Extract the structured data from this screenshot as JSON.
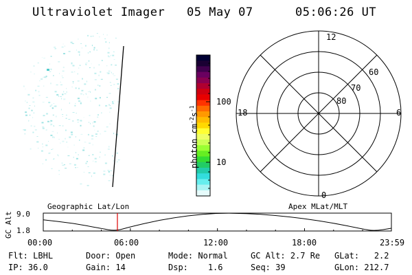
{
  "header": {
    "instrument": "Ultraviolet Imager",
    "date": "05 May 07",
    "time": "05:06:26 UT"
  },
  "colorbar": {
    "axis_label_main": "photon cm",
    "axis_label_sup1": "-2",
    "axis_label_mid": "s",
    "axis_label_sup2": "-1",
    "tick_labels": [
      "100",
      "10"
    ],
    "colors": [
      "#000033",
      "#1a0033",
      "#40004d",
      "#6a0060",
      "#8a0050",
      "#b00030",
      "#d00010",
      "#e80000",
      "#ff3300",
      "#ff6a00",
      "#ff9900",
      "#ffbb00",
      "#ffd900",
      "#ffff33",
      "#eeff66",
      "#ccff55",
      "#99ff33",
      "#66ee22",
      "#33dd33",
      "#22cc66",
      "#22ccaa",
      "#33dddd",
      "#66eeee",
      "#aaf4f4",
      "#e6fbfb"
    ]
  },
  "polar": {
    "mlt_labels": {
      "top": "12",
      "left": "18",
      "right": "6",
      "bottom": "0"
    },
    "lat_labels": [
      "60",
      "70",
      "80"
    ]
  },
  "timeline": {
    "left_title": "Geographic Lat/Lon",
    "right_title": "Apex MLat/MLT",
    "axis_label": "GC Alt",
    "y_top": "9.0",
    "y_bottom": "1.8",
    "time_ticks": [
      "00:00",
      "06:00",
      "12:00",
      "18:00",
      "23:59"
    ]
  },
  "chart_data": {
    "type": "line",
    "title": "",
    "xlabel": "",
    "ylabel": "GC Alt",
    "xlim": [
      "00:00",
      "23:59"
    ],
    "ylim": [
      1.8,
      9.0
    ],
    "current_time": "05:06:26",
    "x": [
      "00:00",
      "02:00",
      "04:00",
      "05:00",
      "06:00",
      "08:00",
      "10:00",
      "12:00",
      "14:00",
      "16:00",
      "18:00",
      "20:00",
      "22:00",
      "22:50",
      "23:59"
    ],
    "values": [
      6.3,
      5.0,
      2.8,
      1.8,
      3.5,
      6.2,
      8.0,
      9.0,
      8.9,
      8.1,
      6.8,
      5.0,
      2.6,
      1.8,
      2.9
    ]
  },
  "footer": {
    "rows": [
      [
        {
          "label": "Flt:",
          "value": "LBHL"
        },
        {
          "label": "Door:",
          "value": "Open"
        },
        {
          "label": "Mode:",
          "value": "Normal"
        },
        {
          "label": "GC Alt:",
          "value": "2.7 Re"
        },
        {
          "label": "GLat:",
          "value": "2.2"
        }
      ],
      [
        {
          "label": "IP:",
          "value": "36.0"
        },
        {
          "label": "Gain:",
          "value": "14"
        },
        {
          "label": "Dsp:",
          "value": "1.6"
        },
        {
          "label": "Seq:",
          "value": "39"
        },
        {
          "label": "GLon:",
          "value": "212.7"
        }
      ]
    ]
  }
}
